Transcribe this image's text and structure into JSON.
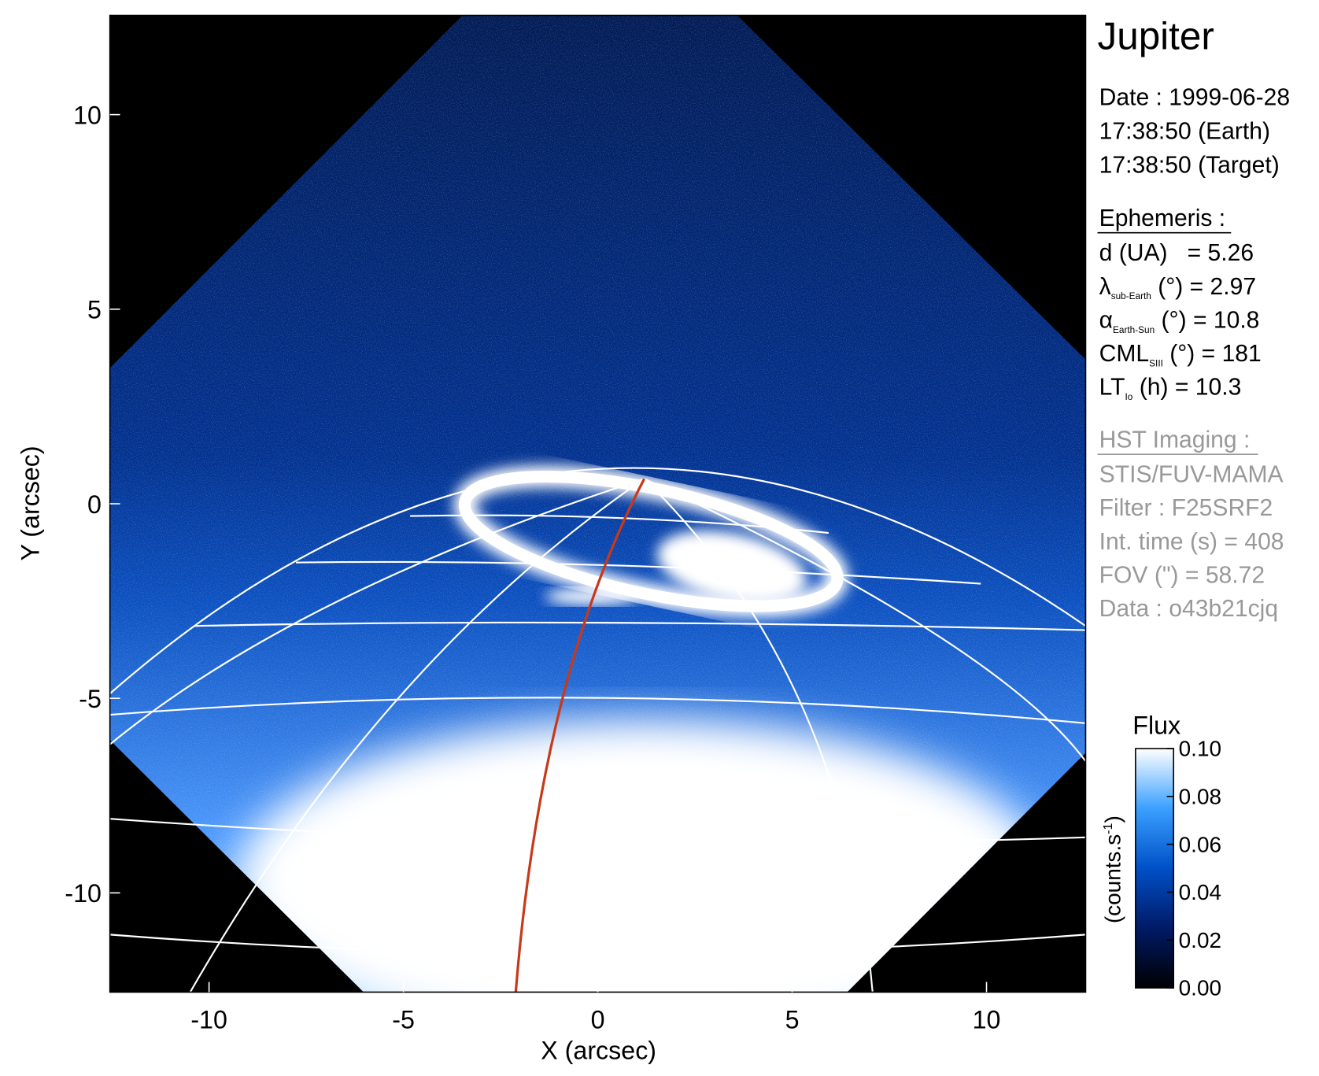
{
  "chart_data": {
    "type": "image",
    "title": "Jupiter",
    "x_label": "X (arcsec)",
    "y_label": "Y (arcsec)",
    "xlim": [
      -12.55,
      12.55
    ],
    "ylim": [
      -12.55,
      12.55
    ],
    "xticks": [
      -10,
      -5,
      0,
      5,
      10
    ],
    "yticks": [
      -10,
      -5,
      0,
      5,
      10
    ],
    "date_lines": [
      "Date : 1999-06-28",
      "17:38:50 (Earth)",
      "17:38:50 (Target)"
    ],
    "ephemeris": {
      "heading": "Ephemeris :",
      "items": [
        {
          "symbol": "d (UA)",
          "sub": "",
          "rest": "   = 5.26"
        },
        {
          "symbol": "λ",
          "sub": "sub-Earth",
          "rest": " (°) = 2.97"
        },
        {
          "symbol": "α",
          "sub": "Earth-Sun",
          "rest": " (°) = 10.8"
        },
        {
          "symbol": "CML",
          "sub": "SIII",
          "rest": " (°) = 181"
        },
        {
          "symbol": "LT",
          "sub": "Io",
          "rest": " (h) = 10.3"
        }
      ]
    },
    "imaging": {
      "heading": "HST Imaging :",
      "lines": [
        "STIS/FUV-MAMA",
        "Filter : F25SRF2",
        "Int. time (s) = 408",
        "FOV (\") = 58.72",
        "Data : o43b21cjq"
      ]
    },
    "colorbar": {
      "title": "Flux",
      "label": {
        "text": "(counts.s",
        "sup": "-1",
        "end": ")"
      },
      "clim": [
        0,
        0.1
      ],
      "ticks": [
        {
          "value": 0,
          "label": "0.00"
        },
        {
          "value": 0.02,
          "label": "0.02"
        },
        {
          "value": 0.04,
          "label": "0.04"
        },
        {
          "value": 0.06,
          "label": "0.06"
        },
        {
          "value": 0.08,
          "label": "0.08"
        },
        {
          "value": 0.1,
          "label": "0.10"
        }
      ],
      "colormap": [
        "#000000",
        "#001a66",
        "#0050c8",
        "#3aa0ff",
        "#ffffff"
      ]
    }
  }
}
